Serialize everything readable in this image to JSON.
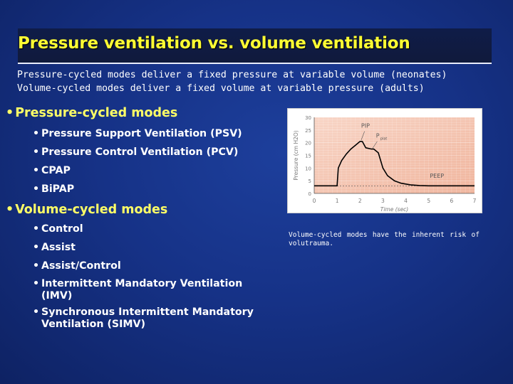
{
  "slide": {
    "title": "Pressure ventilation vs. volume ventilation",
    "intro": [
      "Pressure-cycled modes deliver a fixed pressure at variable volume (neonates)",
      "Volume-cycled modes deliver a fixed volume at variable pressure (adults)"
    ],
    "pressure_section": {
      "heading": "Pressure-cycled modes",
      "items": [
        "Pressure Support Ventilation (PSV)",
        "Pressure Control Ventilation (PCV)",
        "CPAP",
        "BiPAP"
      ]
    },
    "volume_section": {
      "heading": "Volume-cycled modes",
      "items": [
        "Control",
        "Assist",
        "Assist/Control",
        "Intermittent Mandatory Ventilation (IMV)",
        "Synchronous Intermittent Mandatory Ventilation (SIMV)"
      ]
    },
    "caption": "Volume-cycled modes have the inherent risk of volutrauma.",
    "bullet_glyph": "•",
    "colors": {
      "title": "#ffff33",
      "heading": "#ffff66",
      "text": "#ffffff",
      "plot_bg": "#f4c5b2",
      "curve": "#000000"
    }
  },
  "chart_data": {
    "type": "line",
    "xlabel": "Time (sec)",
    "ylabel": "Pressure (cm H2O)",
    "xlim": [
      0,
      7
    ],
    "ylim": [
      0,
      30
    ],
    "x_ticks": [
      "0",
      "1",
      "2",
      "3",
      "4",
      "5",
      "6",
      "7"
    ],
    "y_ticks": [
      "0",
      "5",
      "10",
      "15",
      "20",
      "25",
      "30"
    ],
    "annotations": {
      "pip": "PIP",
      "pplat_main": "P",
      "pplat_sub": "plat",
      "peep": "PEEP"
    },
    "series": [
      {
        "values": [
          [
            0,
            3
          ],
          [
            1.0,
            3
          ],
          [
            1.05,
            10
          ],
          [
            1.2,
            13
          ],
          [
            1.4,
            15.5
          ],
          [
            1.6,
            17.5
          ],
          [
            1.8,
            19
          ],
          [
            2.0,
            20.5
          ],
          [
            2.1,
            20.5
          ],
          [
            2.25,
            18
          ],
          [
            2.5,
            17.5
          ],
          [
            2.6,
            17.5
          ],
          [
            2.8,
            16
          ],
          [
            3.0,
            10
          ],
          [
            3.2,
            7
          ],
          [
            3.5,
            5
          ],
          [
            3.8,
            4
          ],
          [
            4.2,
            3.4
          ],
          [
            4.6,
            3.1
          ],
          [
            5.0,
            3
          ],
          [
            7,
            3
          ]
        ]
      }
    ],
    "grid": true,
    "legend": "none"
  }
}
